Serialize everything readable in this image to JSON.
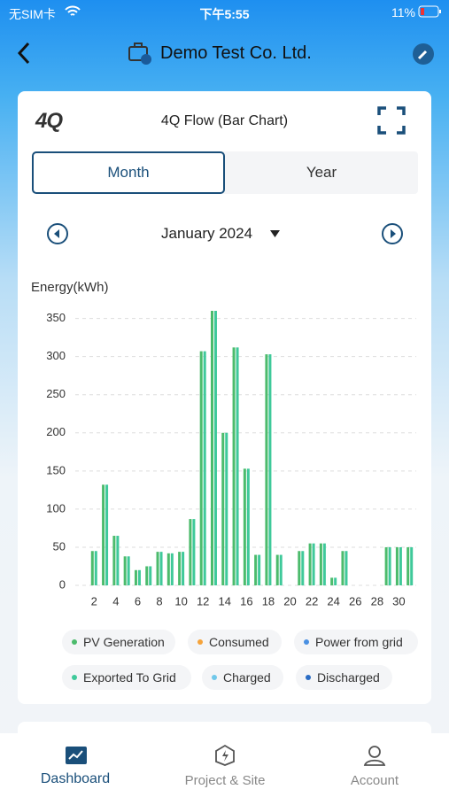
{
  "status_bar": {
    "carrier": "无SIM卡",
    "time": "下午5:55",
    "battery": "11%"
  },
  "header": {
    "title": "Demo Test Co. Ltd."
  },
  "card": {
    "title": "4Q Flow (Bar Chart)",
    "tabs": [
      "Month",
      "Year"
    ],
    "period": "January 2024"
  },
  "chart_data": {
    "type": "bar",
    "y_label": "Energy(kWh)",
    "categories": [
      null,
      "2",
      null,
      "4",
      null,
      "6",
      null,
      "8",
      null,
      "10",
      null,
      "12",
      null,
      "14",
      null,
      "16",
      null,
      "18",
      null,
      "20",
      null,
      "22",
      null,
      "24",
      null,
      "26",
      null,
      "28",
      null,
      "30",
      null
    ],
    "series": [
      {
        "name": "PV Generation",
        "color": "#4cbb6c",
        "values": [
          0,
          45,
          132,
          65,
          38,
          20,
          25,
          44,
          42,
          44,
          87,
          307,
          360,
          200,
          312,
          153,
          40,
          303,
          40,
          0,
          45,
          55,
          55,
          10,
          45,
          0,
          0,
          0,
          50,
          50,
          50
        ]
      },
      {
        "name": "Consumed",
        "color": "#f5a33a",
        "values": [
          0,
          0,
          0,
          0,
          0,
          0,
          0,
          0,
          0,
          0,
          0,
          0,
          0,
          0,
          0,
          0,
          0,
          0,
          0,
          0,
          0,
          0,
          0,
          0,
          0,
          0,
          0,
          0,
          0,
          0,
          0
        ]
      },
      {
        "name": "Power from grid",
        "color": "#4a90e2",
        "values": [
          0,
          0,
          0,
          0,
          0,
          0,
          0,
          0,
          0,
          0,
          0,
          0,
          0,
          0,
          0,
          0,
          0,
          0,
          0,
          0,
          0,
          0,
          0,
          0,
          0,
          0,
          0,
          0,
          0,
          0,
          0
        ]
      },
      {
        "name": "Exported To Grid",
        "color": "#3fc99a",
        "values": [
          0,
          45,
          132,
          65,
          38,
          20,
          25,
          44,
          42,
          44,
          87,
          307,
          360,
          200,
          312,
          153,
          40,
          303,
          40,
          0,
          45,
          55,
          55,
          10,
          45,
          0,
          0,
          0,
          50,
          50,
          50
        ]
      },
      {
        "name": "Charged",
        "color": "#70c8ea",
        "values": [
          0,
          0,
          0,
          0,
          0,
          0,
          0,
          0,
          0,
          0,
          0,
          0,
          0,
          0,
          0,
          0,
          0,
          0,
          0,
          0,
          0,
          0,
          0,
          0,
          0,
          0,
          0,
          0,
          0,
          0,
          0
        ]
      },
      {
        "name": "Discharged",
        "color": "#2a6cc4",
        "values": [
          0,
          0,
          0,
          0,
          0,
          0,
          0,
          0,
          0,
          0,
          0,
          0,
          0,
          0,
          0,
          0,
          0,
          0,
          0,
          0,
          0,
          0,
          0,
          0,
          0,
          0,
          0,
          0,
          0,
          0,
          0
        ]
      }
    ],
    "ylim": [
      0,
      360
    ],
    "yticks": [
      0,
      50,
      100,
      150,
      200,
      250,
      300,
      350
    ],
    "grid": true
  },
  "tab_bar": {
    "items": [
      "Dashboard",
      "Project & Site",
      "Account"
    ]
  }
}
